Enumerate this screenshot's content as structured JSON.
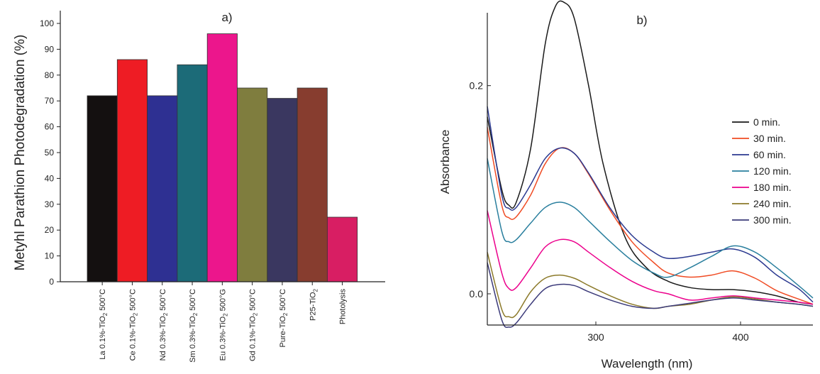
{
  "chart_data": [
    {
      "panel_label": "a)",
      "type": "bar",
      "ylabel": "Metyhl Parathion Photodegradation (%)",
      "ylim": [
        0,
        100
      ],
      "yticks": [
        0,
        10,
        20,
        30,
        40,
        50,
        60,
        70,
        80,
        90,
        100
      ],
      "categories": [
        {
          "pre": "La 0.1%-TiO",
          "sub": "2",
          "post": " 500°C"
        },
        {
          "pre": "Ce 0.1%-TiO",
          "sub": "2",
          "post": " 500°C"
        },
        {
          "pre": "Nd 0.3%-TiO",
          "sub": "2",
          "post": " 500°C"
        },
        {
          "pre": "Sm 0.3%-TiO",
          "sub": "2",
          "post": " 500°C"
        },
        {
          "pre": "Eu 0.3%-TiO",
          "sub": "2",
          "post": " 500°G"
        },
        {
          "pre": "Gd 0.1%-TiO",
          "sub": "2",
          "post": " 500°C"
        },
        {
          "pre": "Pure-TiO",
          "sub": "2",
          "post": " 500°C"
        },
        {
          "pre": "P25-TiO",
          "sub": "2",
          "post": ""
        },
        {
          "pre": "Photolysis",
          "sub": "",
          "post": ""
        }
      ],
      "values": [
        72,
        86,
        72,
        84,
        96,
        75,
        71,
        75,
        25
      ],
      "colors": [
        "#141010",
        "#ee1c24",
        "#2e3092",
        "#1c6b78",
        "#ec168c",
        "#7f7d3e",
        "#3a3760",
        "#873d2f",
        "#d81e63"
      ]
    },
    {
      "panel_label": "b)",
      "type": "line",
      "xlabel": "Wavelength (nm)",
      "ylabel": "Absorbance",
      "xlim": [
        225,
        450
      ],
      "ylim": [
        -0.03,
        0.27
      ],
      "xticks": [
        300,
        400
      ],
      "yticks": [
        0.0,
        0.2
      ],
      "ytick_labels": [
        "0.0",
        "0.2"
      ],
      "legend_position": "right",
      "series": [
        {
          "name": "0 min.",
          "color": "#1a1a1a",
          "x": [
            225,
            235,
            240,
            245,
            255,
            265,
            272,
            278,
            285,
            295,
            305,
            320,
            335,
            350,
            365,
            380,
            395,
            410,
            425,
            440,
            450
          ],
          "y": [
            0.17,
            0.1,
            0.085,
            0.088,
            0.14,
            0.24,
            0.276,
            0.28,
            0.265,
            0.2,
            0.125,
            0.055,
            0.025,
            0.012,
            0.006,
            0.004,
            0.004,
            0.002,
            -0.002,
            -0.008,
            -0.01
          ]
        },
        {
          "name": "30 min.",
          "color": "#f04b23",
          "x": [
            225,
            235,
            240,
            245,
            255,
            265,
            275,
            285,
            295,
            310,
            325,
            340,
            350,
            365,
            380,
            395,
            410,
            425,
            440,
            450
          ],
          "y": [
            0.16,
            0.085,
            0.073,
            0.074,
            0.095,
            0.125,
            0.14,
            0.135,
            0.115,
            0.08,
            0.05,
            0.03,
            0.02,
            0.016,
            0.018,
            0.022,
            0.015,
            0.003,
            -0.005,
            -0.01
          ]
        },
        {
          "name": "60 min.",
          "color": "#2b3990",
          "x": [
            225,
            235,
            240,
            245,
            255,
            265,
            275,
            285,
            295,
            310,
            325,
            340,
            350,
            365,
            380,
            395,
            410,
            425,
            440,
            450
          ],
          "y": [
            0.18,
            0.095,
            0.082,
            0.083,
            0.105,
            0.13,
            0.14,
            0.135,
            0.116,
            0.082,
            0.056,
            0.04,
            0.034,
            0.036,
            0.04,
            0.043,
            0.035,
            0.018,
            0.005,
            -0.008
          ]
        },
        {
          "name": "120 min.",
          "color": "#2a7f9e",
          "x": [
            225,
            235,
            240,
            245,
            255,
            265,
            275,
            285,
            295,
            310,
            325,
            340,
            350,
            365,
            380,
            395,
            410,
            425,
            440,
            450
          ],
          "y": [
            0.13,
            0.06,
            0.05,
            0.052,
            0.068,
            0.083,
            0.088,
            0.083,
            0.07,
            0.05,
            0.032,
            0.02,
            0.016,
            0.025,
            0.036,
            0.046,
            0.04,
            0.025,
            0.008,
            -0.004
          ]
        },
        {
          "name": "180 min.",
          "color": "#ec008c",
          "x": [
            225,
            235,
            240,
            245,
            255,
            265,
            275,
            285,
            295,
            310,
            325,
            340,
            350,
            365,
            380,
            395,
            410,
            425,
            440,
            450
          ],
          "y": [
            0.08,
            0.02,
            0.005,
            0.006,
            0.025,
            0.045,
            0.052,
            0.05,
            0.04,
            0.025,
            0.012,
            0.003,
            0.0,
            -0.006,
            -0.004,
            -0.002,
            -0.004,
            -0.006,
            -0.008,
            -0.01
          ]
        },
        {
          "name": "240 min.",
          "color": "#8c7a2a",
          "x": [
            225,
            235,
            240,
            245,
            255,
            265,
            275,
            285,
            295,
            310,
            325,
            340,
            350,
            365,
            380,
            395,
            410,
            425,
            440,
            450
          ],
          "y": [
            0.04,
            -0.015,
            -0.022,
            -0.02,
            0.002,
            0.015,
            0.018,
            0.015,
            0.008,
            -0.002,
            -0.01,
            -0.014,
            -0.012,
            -0.01,
            -0.006,
            -0.003,
            -0.005,
            -0.008,
            -0.01,
            -0.012
          ]
        },
        {
          "name": "300 min.",
          "color": "#3c3b7a",
          "x": [
            225,
            235,
            240,
            245,
            255,
            265,
            275,
            285,
            295,
            310,
            325,
            340,
            350,
            365,
            380,
            395,
            410,
            425,
            440,
            450
          ],
          "y": [
            0.03,
            -0.025,
            -0.032,
            -0.028,
            -0.01,
            0.005,
            0.009,
            0.008,
            0.002,
            -0.006,
            -0.012,
            -0.014,
            -0.012,
            -0.009,
            -0.006,
            -0.004,
            -0.006,
            -0.008,
            -0.01,
            -0.012
          ]
        }
      ]
    }
  ]
}
